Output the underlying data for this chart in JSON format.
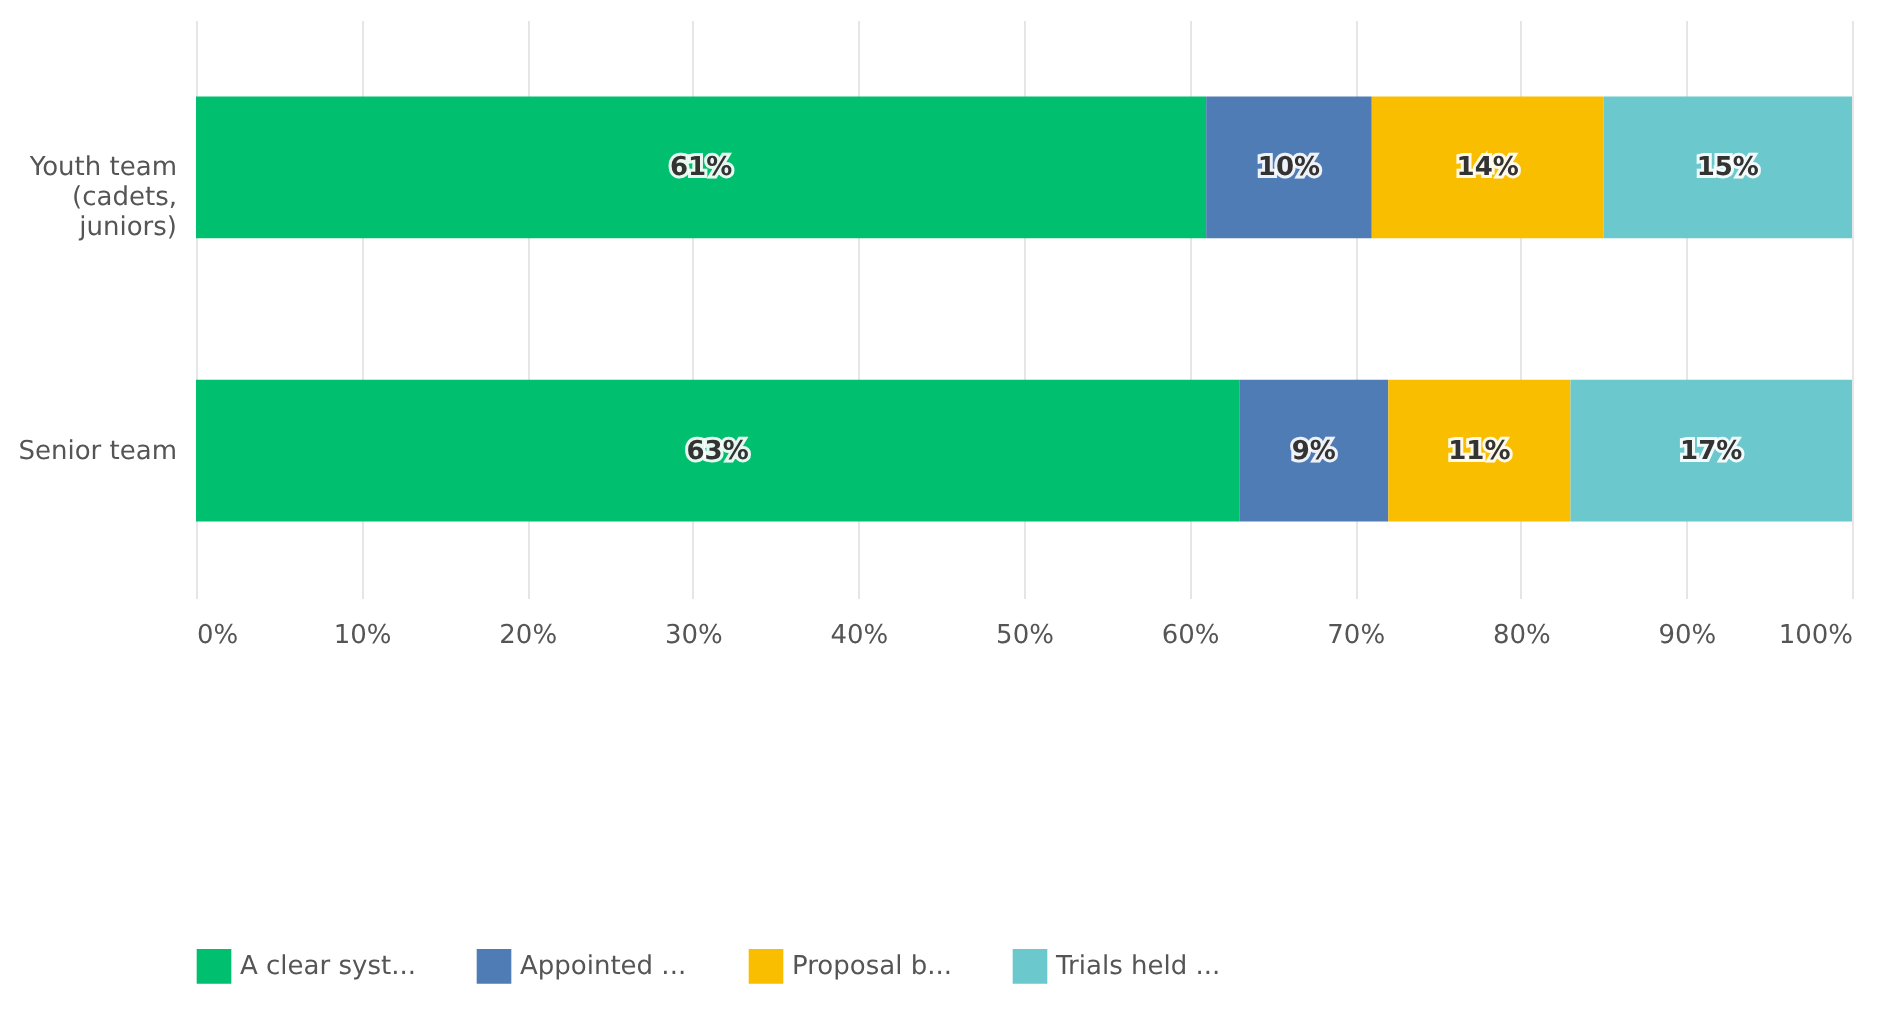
{
  "chart_data": {
    "type": "bar",
    "orientation": "horizontal",
    "stacked": true,
    "grid": "x",
    "legend": "bottom",
    "categories": [
      "Youth team\n(cadets,\njuniors)",
      "Senior team"
    ],
    "series": [
      {
        "name": "A clear syst...",
        "color": "#00bf6f",
        "values": [
          61,
          63
        ],
        "value_labels": [
          "61%",
          "63%"
        ]
      },
      {
        "name": "Appointed ...",
        "color": "#507cb6",
        "values": [
          10,
          9
        ],
        "value_labels": [
          "10%",
          "9%"
        ]
      },
      {
        "name": "Proposal b...",
        "color": "#f9be00",
        "values": [
          14,
          11
        ],
        "value_labels": [
          "14%",
          "11%"
        ]
      },
      {
        "name": "Trials held ...",
        "color": "#6bc8cd",
        "values": [
          15,
          17
        ],
        "value_labels": [
          "15%",
          "17%"
        ]
      }
    ],
    "xlim": [
      0,
      100
    ],
    "xticks": [
      {
        "value": 0,
        "label": "0%"
      },
      {
        "value": 10,
        "label": "10%"
      },
      {
        "value": 20,
        "label": "20%"
      },
      {
        "value": 30,
        "label": "30%"
      },
      {
        "value": 40,
        "label": "40%"
      },
      {
        "value": 50,
        "label": "50%"
      },
      {
        "value": 60,
        "label": "60%"
      },
      {
        "value": 70,
        "label": "70%"
      },
      {
        "value": 80,
        "label": "80%"
      },
      {
        "value": 90,
        "label": "90%"
      },
      {
        "value": 100,
        "label": "100%"
      }
    ]
  }
}
